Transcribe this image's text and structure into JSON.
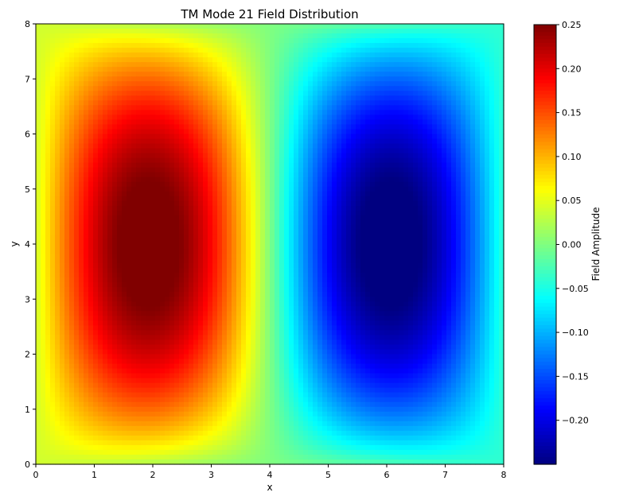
{
  "chart_data": {
    "type": "heatmap",
    "title": "TM Mode 21 Field Distribution",
    "xlabel": "x",
    "ylabel": "y",
    "xlim": [
      0,
      8
    ],
    "ylim": [
      0,
      8
    ],
    "xticks": [
      0,
      1,
      2,
      3,
      4,
      5,
      6,
      7,
      8
    ],
    "yticks": [
      0,
      1,
      2,
      3,
      4,
      5,
      6,
      7,
      8
    ],
    "colorbar": {
      "label": "Field Amplitude",
      "colormap": "jet",
      "range": [
        -0.25,
        0.25
      ],
      "ticks": [
        0.25,
        0.2,
        0.15,
        0.1,
        0.05,
        0.0,
        -0.05,
        -0.1,
        -0.15,
        -0.2
      ],
      "tick_labels": [
        "0.25",
        "0.20",
        "0.15",
        "0.10",
        "0.05",
        "0.00",
        "−0.05",
        "−0.10",
        "−0.15",
        "−0.20"
      ]
    },
    "field": {
      "peak_max": {
        "x": 1.7,
        "y": 4.0,
        "value": 0.25
      },
      "peak_min": {
        "x": 6.3,
        "y": 4.0,
        "value": -0.25
      },
      "zero_line_x": 4.0,
      "edge_values": {
        "x0": 0.04,
        "x8": -0.04,
        "y0": 0.0,
        "y8": 0.0
      }
    }
  }
}
